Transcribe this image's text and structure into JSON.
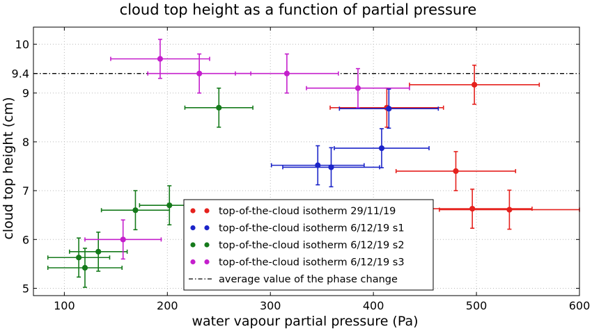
{
  "chart_data": {
    "type": "scatter",
    "title": "cloud top height as a function of partial pressure",
    "xlabel": "water vapour partial pressure (Pa)",
    "ylabel": "cloud top height (cm)",
    "xlim": [
      70,
      600
    ],
    "ylim": [
      4.85,
      10.35
    ],
    "xticks": [
      100,
      200,
      300,
      400,
      500,
      600
    ],
    "yticks": [
      5,
      6,
      7,
      8,
      9,
      10
    ],
    "grid": true,
    "legend_position": "bottom-center",
    "reference_line": {
      "y": 9.4,
      "label": "9.4",
      "name": "average value of the phase change",
      "style": "dash-dot"
    },
    "series": [
      {
        "name": "top-of-the-cloud isotherm 29/11/19",
        "color": "#e5211d",
        "points": [
          {
            "x": 413,
            "y": 8.7,
            "xerr": 55,
            "yerr": 0.4
          },
          {
            "x": 498,
            "y": 9.17,
            "xerr": 63,
            "yerr": 0.4
          },
          {
            "x": 480,
            "y": 7.4,
            "xerr": 58,
            "yerr": 0.4
          },
          {
            "x": 496,
            "y": 6.63,
            "xerr": 58,
            "yerr": 0.4
          },
          {
            "x": 532,
            "y": 6.61,
            "xerr": 68,
            "yerr": 0.4
          }
        ]
      },
      {
        "name": "top-of-the-cloud isotherm 6/12/19 s1",
        "color": "#1b24c8",
        "points": [
          {
            "x": 415,
            "y": 8.68,
            "xerr": 48,
            "yerr": 0.4
          },
          {
            "x": 408,
            "y": 7.87,
            "xerr": 46,
            "yerr": 0.4
          },
          {
            "x": 346,
            "y": 7.52,
            "xerr": 45,
            "yerr": 0.4
          },
          {
            "x": 359,
            "y": 7.48,
            "xerr": 47,
            "yerr": 0.4
          }
        ]
      },
      {
        "name": "top-of-the-cloud isotherm 6/12/19 s2",
        "color": "#157a1b",
        "points": [
          {
            "x": 250,
            "y": 8.7,
            "xerr": 33,
            "yerr": 0.4
          },
          {
            "x": 202,
            "y": 6.7,
            "xerr": 29,
            "yerr": 0.4
          },
          {
            "x": 169,
            "y": 6.6,
            "xerr": 33,
            "yerr": 0.4
          },
          {
            "x": 133,
            "y": 5.75,
            "xerr": 28,
            "yerr": 0.4
          },
          {
            "x": 114,
            "y": 5.63,
            "xerr": 30,
            "yerr": 0.4
          },
          {
            "x": 120,
            "y": 5.42,
            "xerr": 36,
            "yerr": 0.4
          }
        ]
      },
      {
        "name": "top-of-the-cloud isotherm 6/12/19 s3",
        "color": "#c41fcc",
        "points": [
          {
            "x": 193,
            "y": 9.7,
            "xerr": 48,
            "yerr": 0.4
          },
          {
            "x": 231,
            "y": 9.4,
            "xerr": 50,
            "yerr": 0.4
          },
          {
            "x": 316,
            "y": 9.4,
            "xerr": 50,
            "yerr": 0.4
          },
          {
            "x": 385,
            "y": 9.1,
            "xerr": 50,
            "yerr": 0.4
          },
          {
            "x": 157,
            "y": 6.0,
            "xerr": 37,
            "yerr": 0.4
          }
        ]
      }
    ]
  }
}
